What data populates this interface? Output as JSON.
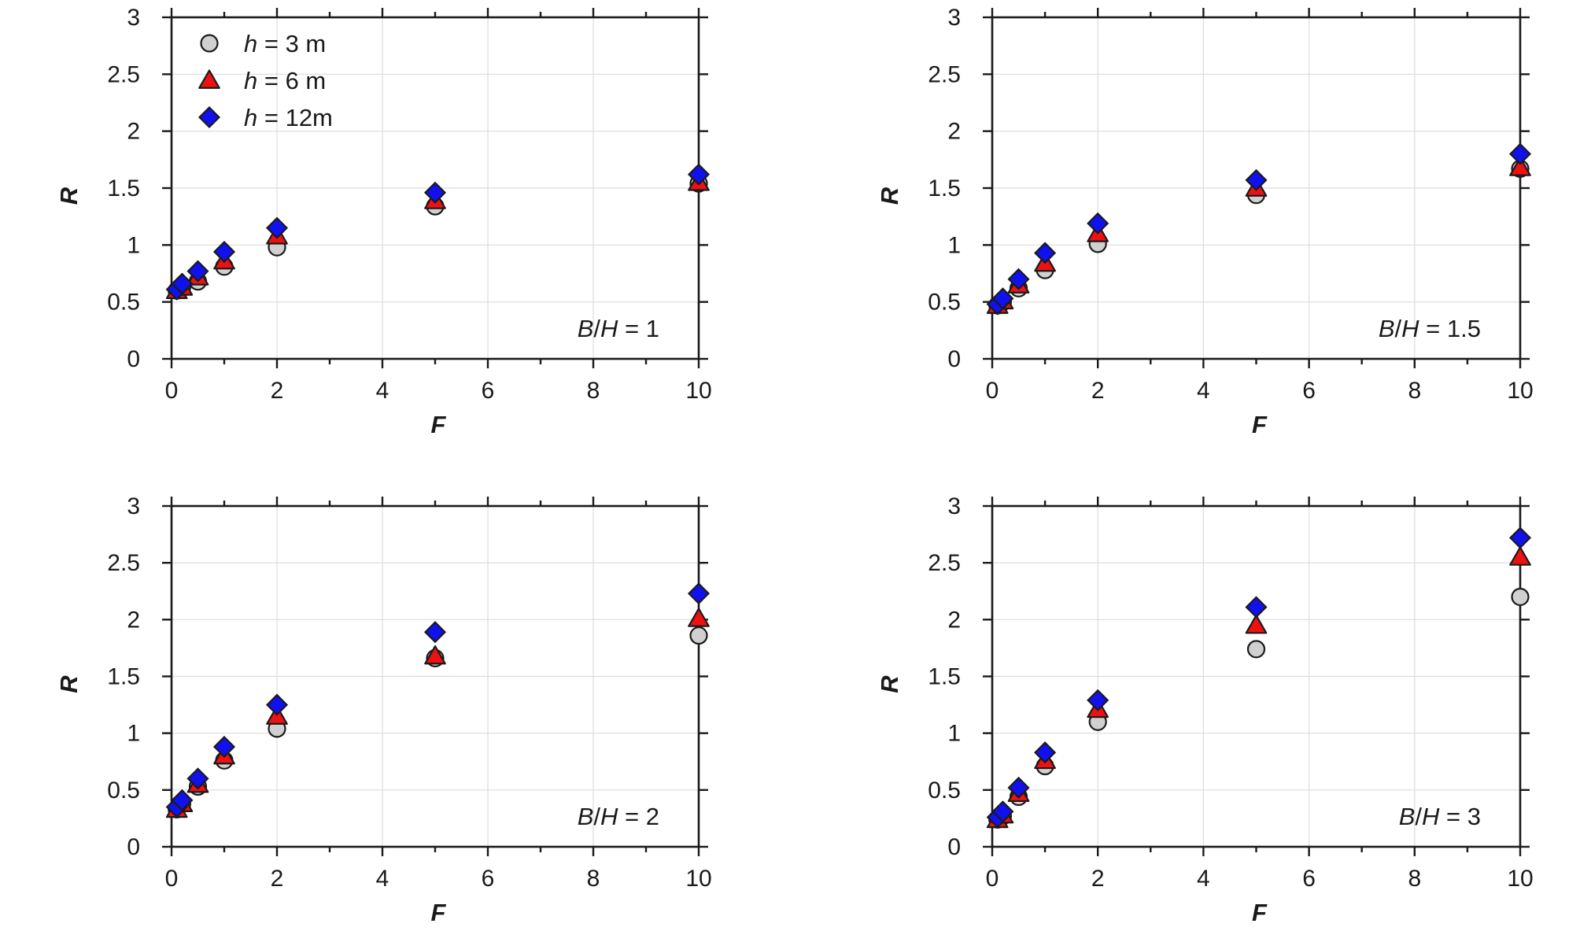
{
  "chart_data": [
    {
      "type": "scatter",
      "xlabel": "F",
      "ylabel": "R",
      "xlim": [
        0,
        10
      ],
      "ylim": [
        0,
        3
      ],
      "xticks": [
        "0",
        "2",
        "4",
        "6",
        "8",
        "10"
      ],
      "yticks": [
        "0",
        "0.5",
        "1",
        "1.5",
        "2",
        "2.5",
        "3"
      ],
      "grid": true,
      "legend": "top-left",
      "annotation": {
        "italic": "B",
        "slash": "/",
        "italic2": "H",
        "rest": " = 1"
      },
      "x": [
        0.1,
        0.2,
        0.5,
        1,
        2,
        5,
        10
      ],
      "series": [
        {
          "name": "h = 3 m",
          "name_italic": "h",
          "name_rest": " = 3 m",
          "marker": "circle",
          "color": "#d0d0d0",
          "values": [
            0.6,
            0.63,
            0.68,
            0.81,
            0.98,
            1.34,
            1.54
          ]
        },
        {
          "name": "h = 6 m",
          "name_italic": "h",
          "name_rest": " = 6 m",
          "marker": "triangle",
          "color": "#ee1111",
          "values": [
            0.6,
            0.63,
            0.72,
            0.86,
            1.08,
            1.39,
            1.55
          ]
        },
        {
          "name": "h = 12m",
          "name_italic": "h",
          "name_rest": " = 12m",
          "marker": "diamond",
          "color": "#1111ee",
          "values": [
            0.61,
            0.66,
            0.77,
            0.94,
            1.15,
            1.46,
            1.62
          ]
        }
      ]
    },
    {
      "type": "scatter",
      "xlabel": "F",
      "ylabel": "R",
      "xlim": [
        0,
        10
      ],
      "ylim": [
        0,
        3
      ],
      "xticks": [
        "0",
        "2",
        "4",
        "6",
        "8",
        "10"
      ],
      "yticks": [
        "0",
        "0.5",
        "1",
        "1.5",
        "2",
        "2.5",
        "3"
      ],
      "grid": true,
      "annotation": {
        "italic": "B",
        "slash": "/",
        "italic2": "H",
        "rest": " = 1.5"
      },
      "x": [
        0.1,
        0.2,
        0.5,
        1,
        2,
        5,
        10
      ],
      "series": [
        {
          "marker": "circle",
          "color": "#d0d0d0",
          "values": [
            0.47,
            0.5,
            0.62,
            0.78,
            1.01,
            1.44,
            1.67
          ]
        },
        {
          "marker": "triangle",
          "color": "#ee1111",
          "values": [
            0.47,
            0.51,
            0.65,
            0.84,
            1.1,
            1.5,
            1.68
          ]
        },
        {
          "marker": "diamond",
          "color": "#1111ee",
          "values": [
            0.48,
            0.53,
            0.7,
            0.93,
            1.19,
            1.57,
            1.8
          ]
        }
      ]
    },
    {
      "type": "scatter",
      "xlabel": "F",
      "ylabel": "R",
      "xlim": [
        0,
        10
      ],
      "ylim": [
        0,
        3
      ],
      "xticks": [
        "0",
        "2",
        "4",
        "6",
        "8",
        "10"
      ],
      "yticks": [
        "0",
        "0.5",
        "1",
        "1.5",
        "2",
        "2.5",
        "3"
      ],
      "grid": true,
      "annotation": {
        "italic": "B",
        "slash": "/",
        "italic2": "H",
        "rest": " = 2"
      },
      "x": [
        0.1,
        0.2,
        0.5,
        1,
        2,
        5,
        10
      ],
      "series": [
        {
          "marker": "circle",
          "color": "#d0d0d0",
          "values": [
            0.33,
            0.38,
            0.53,
            0.76,
            1.04,
            1.66,
            1.86
          ]
        },
        {
          "marker": "triangle",
          "color": "#ee1111",
          "values": [
            0.33,
            0.38,
            0.55,
            0.8,
            1.15,
            1.68,
            2.01
          ]
        },
        {
          "marker": "diamond",
          "color": "#1111ee",
          "values": [
            0.35,
            0.41,
            0.6,
            0.88,
            1.25,
            1.89,
            2.23
          ]
        }
      ]
    },
    {
      "type": "scatter",
      "xlabel": "F",
      "ylabel": "R",
      "xlim": [
        0,
        10
      ],
      "ylim": [
        0,
        3
      ],
      "xticks": [
        "0",
        "2",
        "4",
        "6",
        "8",
        "10"
      ],
      "yticks": [
        "0",
        "0.5",
        "1",
        "1.5",
        "2",
        "2.5",
        "3"
      ],
      "grid": true,
      "annotation": {
        "italic": "B",
        "slash": "/",
        "italic2": "H",
        "rest": " = 3"
      },
      "x": [
        0.1,
        0.2,
        0.5,
        1,
        2,
        5,
        10
      ],
      "series": [
        {
          "marker": "circle",
          "color": "#d0d0d0",
          "values": [
            0.24,
            0.27,
            0.44,
            0.71,
            1.1,
            1.74,
            2.2
          ]
        },
        {
          "marker": "triangle",
          "color": "#ee1111",
          "values": [
            0.24,
            0.28,
            0.47,
            0.76,
            1.21,
            1.95,
            2.55
          ]
        },
        {
          "marker": "diamond",
          "color": "#1111ee",
          "values": [
            0.26,
            0.31,
            0.52,
            0.83,
            1.29,
            2.11,
            2.72
          ]
        }
      ]
    }
  ]
}
